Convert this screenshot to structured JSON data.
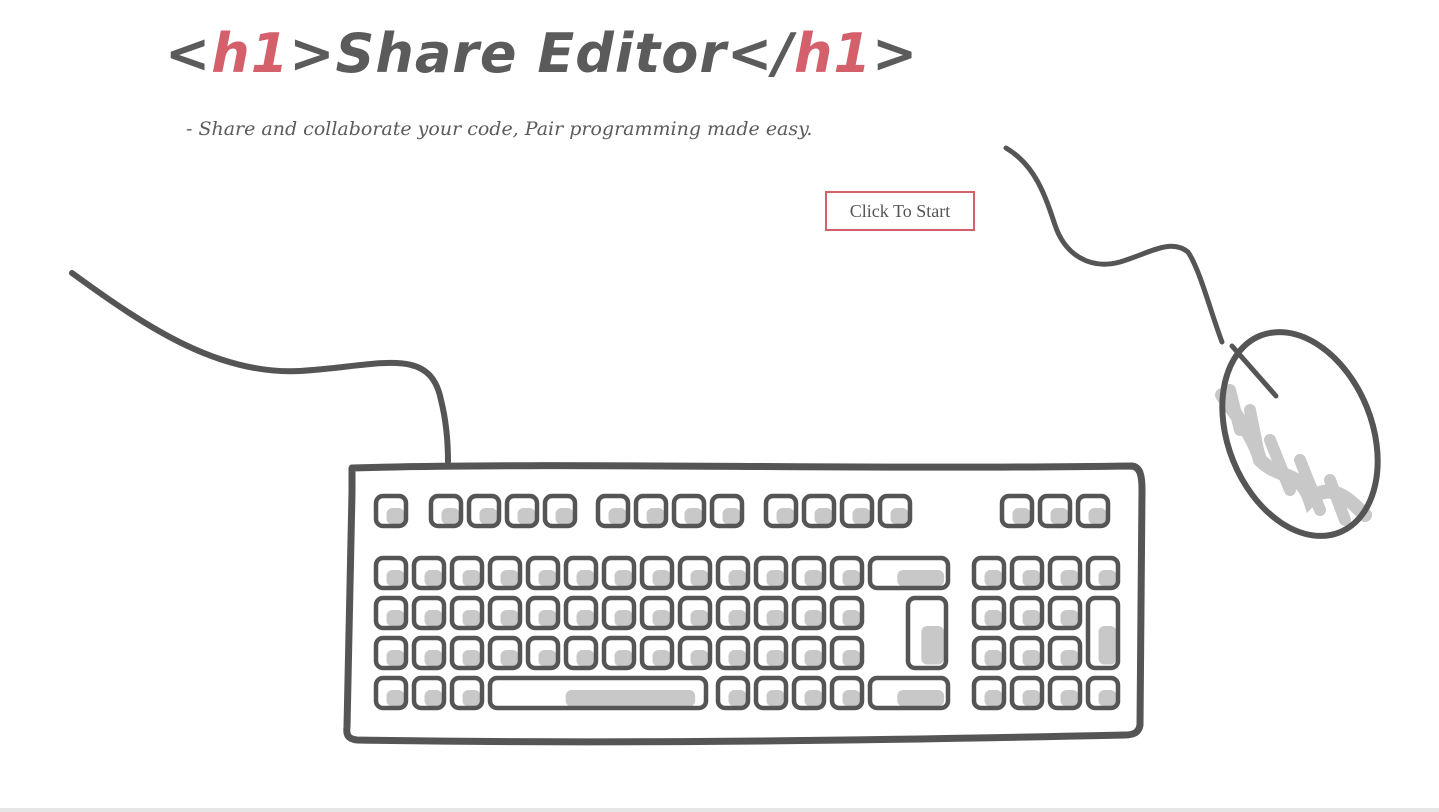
{
  "header": {
    "title_open_left": "<",
    "title_open_tag": "h1",
    "title_open_right": ">",
    "title_text": "Share Editor",
    "title_close_left": "</",
    "title_close_tag": "h1",
    "title_close_right": ">",
    "subtitle": "- Share and collaborate your code, Pair programming made easy."
  },
  "actions": {
    "start_label": "Click To Start"
  },
  "colors": {
    "accent": "#d4606b",
    "text": "#5b5b5b",
    "line": "#555555",
    "fill": "#c8c8c8"
  },
  "icons": [
    "keyboard-icon",
    "mouse-icon"
  ]
}
